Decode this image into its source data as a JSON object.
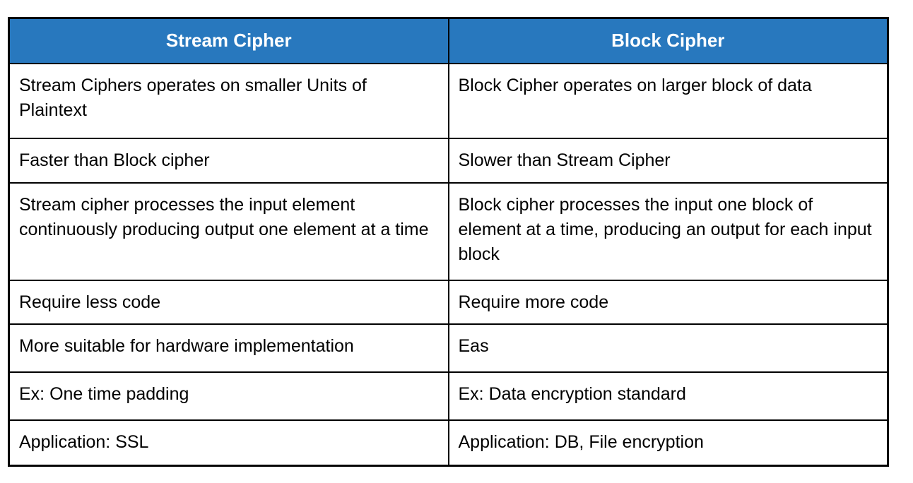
{
  "colors": {
    "header_bg": "#2878BE",
    "header_text": "#FFFFFF",
    "border": "#000000",
    "page_bg": "#FFFFFF",
    "body_text": "#000000"
  },
  "table": {
    "columns": [
      "Stream Cipher",
      "Block Cipher"
    ],
    "rows": [
      [
        "Stream Ciphers operates on smaller Units of Plaintext",
        "Block Cipher operates on larger block of data"
      ],
      [
        "Faster than Block cipher",
        "Slower than Stream Cipher"
      ],
      [
        "Stream cipher processes the input element continuously producing output one element at a time",
        "Block cipher processes the input one block of element at a time, producing an output for each input block"
      ],
      [
        "Require less code",
        "Require more code"
      ],
      [
        "More suitable for hardware implementation",
        "Eas"
      ],
      [
        "Ex: One time padding",
        "Ex: Data encryption standard"
      ],
      [
        "Application: SSL",
        "Application: DB, File encryption"
      ]
    ]
  }
}
